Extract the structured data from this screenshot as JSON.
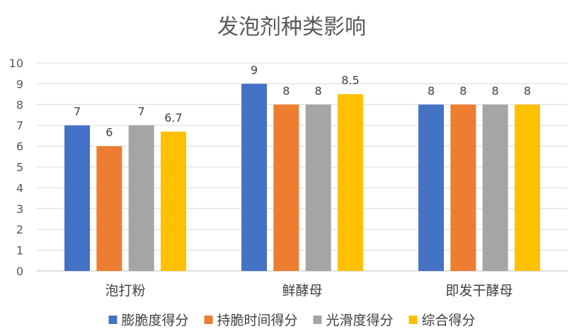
{
  "chart_data": {
    "type": "bar",
    "title": "发泡剂种类影响",
    "categories": [
      "泡打粉",
      "鲜酵母",
      "即发干酵母"
    ],
    "ylim": [
      0,
      10
    ],
    "yticks": [
      0,
      1,
      2,
      3,
      4,
      5,
      6,
      7,
      8,
      9,
      10
    ],
    "grid": true,
    "legend": "bottom",
    "series": [
      {
        "name": "膨脆度得分",
        "color": "#4472C4",
        "values": [
          7,
          9,
          8
        ]
      },
      {
        "name": "持脆时间得分",
        "color": "#ED7D31",
        "values": [
          6,
          8,
          8
        ]
      },
      {
        "name": "光滑度得分",
        "color": "#A5A5A5",
        "values": [
          7,
          8,
          8
        ]
      },
      {
        "name": "综合得分",
        "color": "#FFC000",
        "values": [
          6.7,
          8.5,
          8
        ]
      }
    ]
  }
}
